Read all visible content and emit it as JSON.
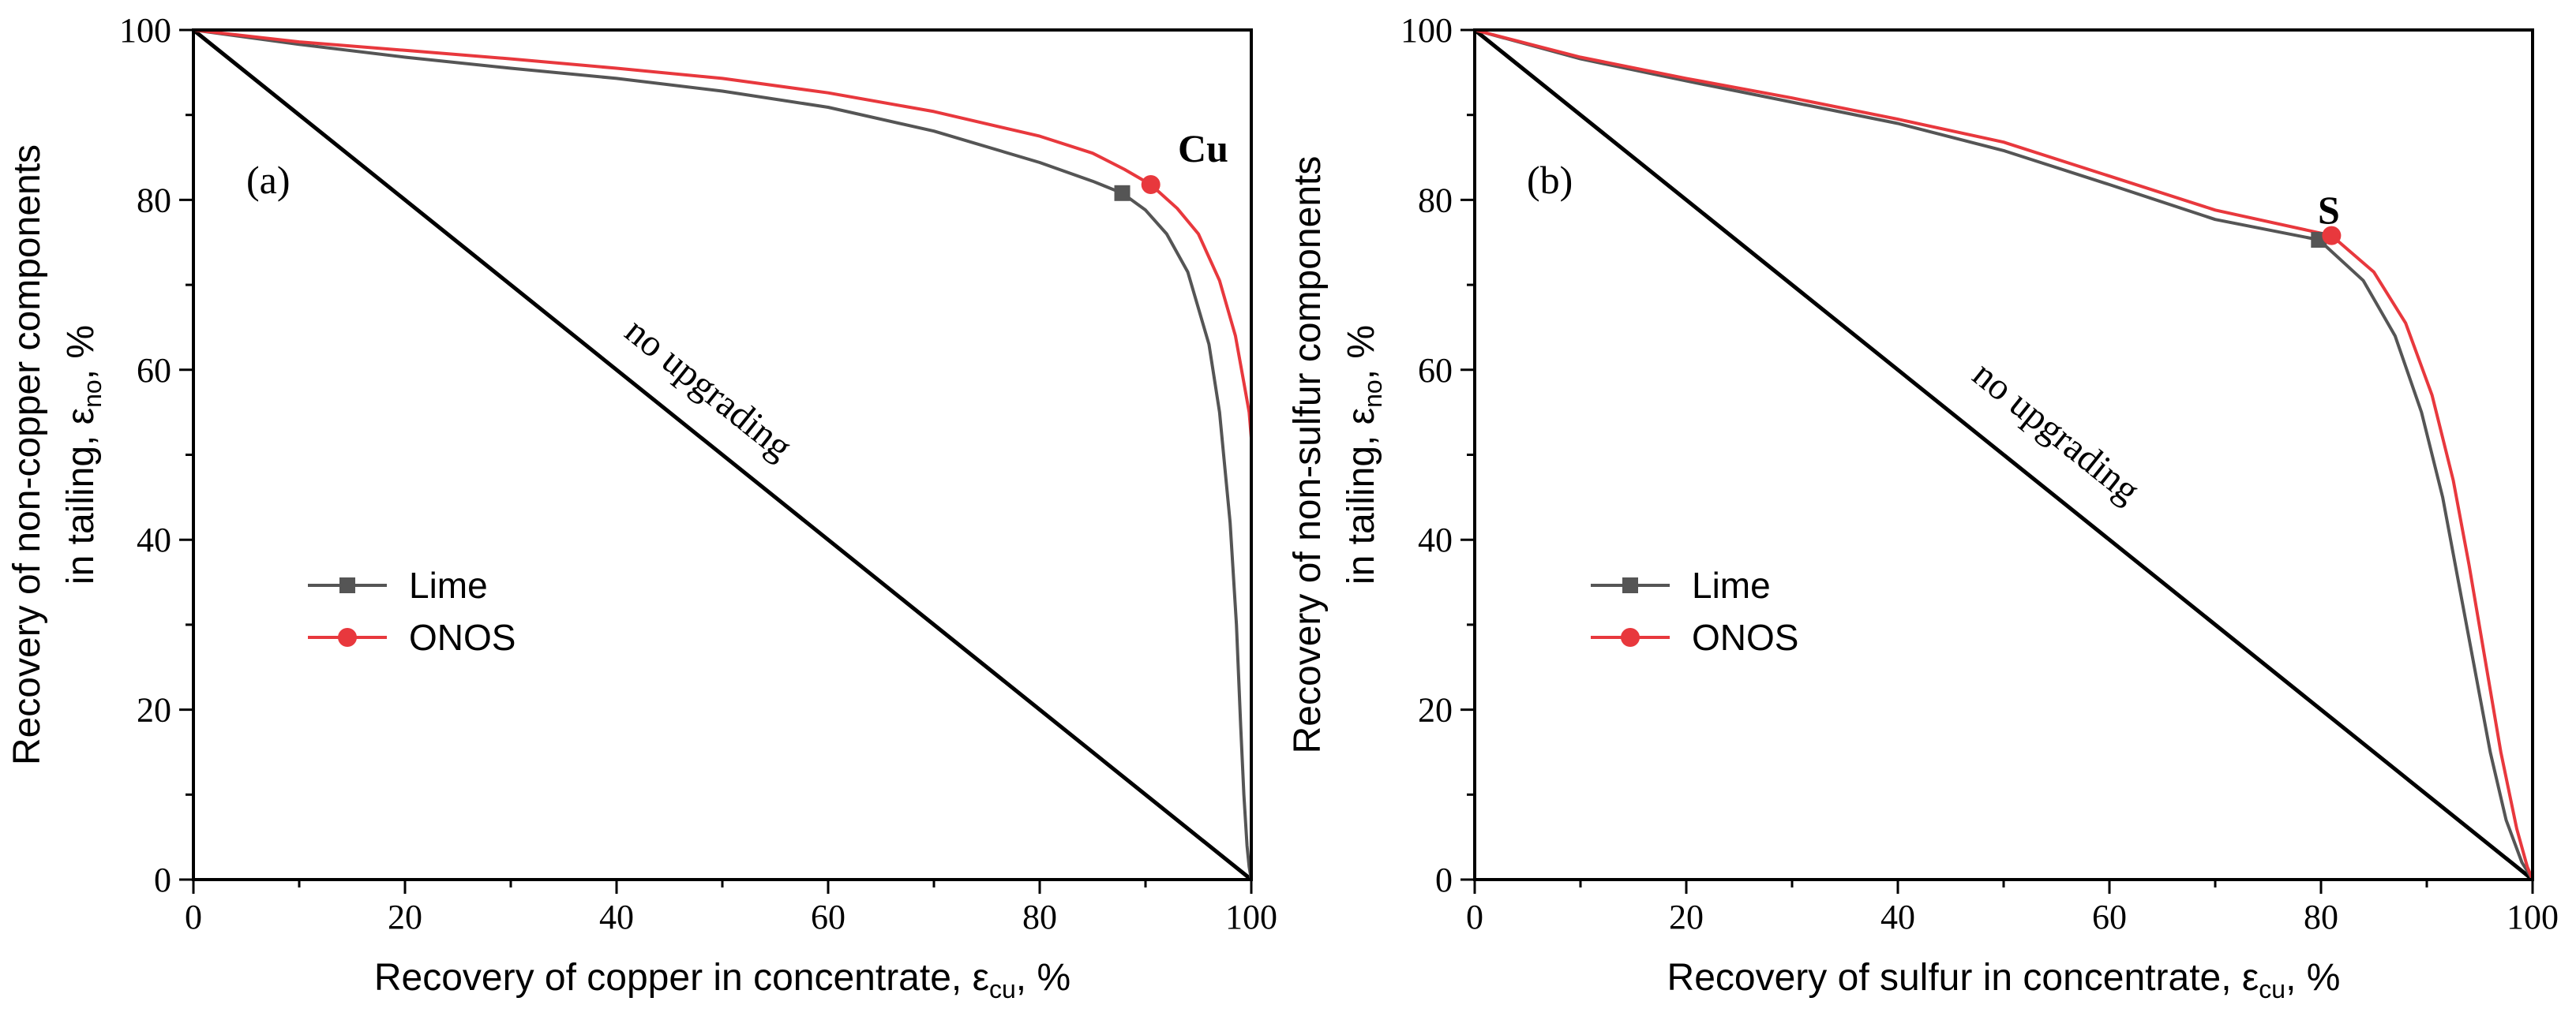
{
  "chart_data": [
    {
      "type": "line",
      "panel_label": "(a)",
      "element_label": "Cu",
      "xlabel_pre": "Recovery of copper in concentrate, ε",
      "xlabel_sub": "cu",
      "xlabel_post": ", %",
      "ylabel_line1": "Recovery of non-copper components",
      "ylabel_line2_pre": "in tailing, ε",
      "ylabel_line2_sub": "no",
      "ylabel_line2_post": ", %",
      "xlim": [
        0,
        100
      ],
      "ylim": [
        0,
        100
      ],
      "xticks": [
        "0",
        "20",
        "40",
        "60",
        "80",
        "100"
      ],
      "yticks": [
        "0",
        "20",
        "40",
        "60",
        "80",
        "100"
      ],
      "diagonal_label": "no upgrading",
      "legend_position": "center-left",
      "series": [
        {
          "name": "Lime",
          "color": "#555555",
          "marker": "square",
          "marker_point": [
            87.8,
            80.8
          ],
          "x": [
            0,
            10,
            20,
            30,
            40,
            50,
            60,
            70,
            80,
            85,
            87.8,
            90,
            92,
            94,
            96,
            97,
            98,
            98.6,
            99.0,
            99.3,
            99.6,
            99.8,
            100
          ],
          "y": [
            100,
            98.3,
            96.8,
            95.5,
            94.3,
            92.8,
            90.9,
            88.1,
            84.4,
            82.2,
            80.8,
            78.8,
            76,
            71.5,
            63,
            55,
            42,
            30,
            18,
            10,
            4,
            1.5,
            0
          ]
        },
        {
          "name": "ONOS",
          "color": "#e8383d",
          "marker": "circle",
          "marker_point": [
            90.5,
            81.8
          ],
          "x": [
            0,
            10,
            20,
            30,
            40,
            50,
            60,
            70,
            80,
            85,
            88,
            90.5,
            93,
            95,
            97,
            98.5,
            99.3,
            99.8,
            100
          ],
          "y": [
            100,
            98.6,
            97.6,
            96.6,
            95.5,
            94.3,
            92.6,
            90.4,
            87.5,
            85.5,
            83.6,
            81.8,
            79,
            76,
            70.5,
            64,
            58.5,
            55,
            52
          ]
        }
      ],
      "red_tail": {
        "x": [
          100,
          100
        ],
        "y": [
          52,
          0
        ]
      }
    },
    {
      "type": "line",
      "panel_label": "(b)",
      "element_label": "S",
      "xlabel_pre": "Recovery of sulfur in concentrate, ε",
      "xlabel_sub": "cu",
      "xlabel_post": ", %",
      "ylabel_line1": "Recovery of non-sulfur components",
      "ylabel_line2_pre": "in tailing, ε",
      "ylabel_line2_sub": "no",
      "ylabel_line2_post": ", %",
      "xlim": [
        0,
        100
      ],
      "ylim": [
        0,
        100
      ],
      "xticks": [
        "0",
        "20",
        "40",
        "60",
        "80",
        "100"
      ],
      "yticks": [
        "0",
        "20",
        "40",
        "60",
        "80",
        "100"
      ],
      "diagonal_label": "no upgrading",
      "legend_position": "center-left",
      "series": [
        {
          "name": "Lime",
          "color": "#555555",
          "marker": "square",
          "marker_point": [
            79.8,
            75.3
          ],
          "x": [
            0,
            10,
            20,
            30,
            40,
            50,
            60,
            70,
            79.8,
            84,
            87,
            89.5,
            91.5,
            93,
            94.5,
            96,
            97.5,
            99,
            100
          ],
          "y": [
            100,
            96.6,
            94,
            91.5,
            89,
            85.8,
            81.8,
            77.7,
            75.3,
            70.5,
            64,
            55,
            45,
            35,
            25,
            15,
            7,
            2,
            0
          ]
        },
        {
          "name": "ONOS",
          "color": "#e8383d",
          "marker": "circle",
          "marker_point": [
            81,
            75.8
          ],
          "x": [
            0,
            10,
            20,
            30,
            40,
            50,
            60,
            70,
            81,
            85,
            88,
            90.5,
            92.5,
            94,
            95.5,
            97,
            98.5,
            99.5,
            100
          ],
          "y": [
            100,
            96.8,
            94.3,
            92,
            89.5,
            86.8,
            82.8,
            78.8,
            75.8,
            71.5,
            65.5,
            57,
            47,
            37,
            26,
            15,
            6,
            1.5,
            0
          ]
        }
      ]
    }
  ]
}
